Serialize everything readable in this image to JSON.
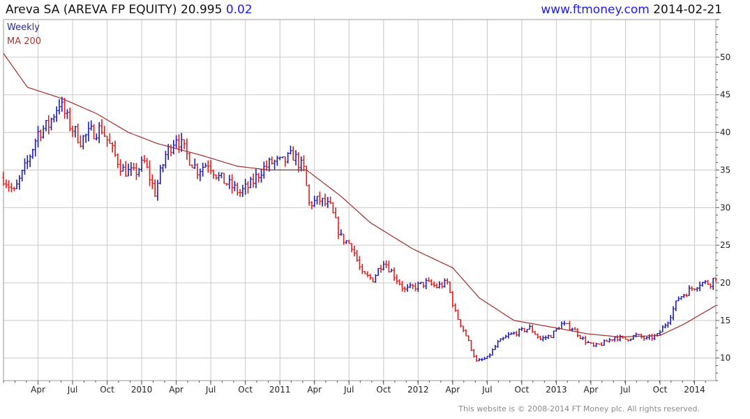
{
  "header": {
    "title": "Areva SA (AREVA FP EQUITY)",
    "price": "20.995",
    "change": "0.02",
    "site": "www.ftmoney.com",
    "date": "2014-02-21"
  },
  "footer": "This website is © 2008-2014 FT Money plc. All rights reserved.",
  "colors": {
    "up": "#1a1ab8",
    "down": "#e31a1a",
    "ma": "#a52a2a",
    "grid": "#c9c9c9"
  },
  "chart_data": {
    "type": "line",
    "title": "Areva SA (AREVA FP EQUITY)",
    "legend": [
      "Weekly",
      "MA 200"
    ],
    "legend_position": "top-left",
    "grid": true,
    "y_axis_position": "right",
    "ylim": [
      7,
      55
    ],
    "yticks": [
      10,
      15,
      20,
      25,
      30,
      35,
      40,
      45,
      50
    ],
    "x_tick_labels": [
      "Apr",
      "Jul",
      "Oct",
      "2010",
      "Apr",
      "Jul",
      "Oct",
      "2011",
      "Apr",
      "Jul",
      "Oct",
      "2012",
      "Apr",
      "Jul",
      "Oct",
      "2013",
      "Apr",
      "Jul",
      "Oct",
      "2014"
    ],
    "x_tick_weeks": [
      13,
      26,
      39,
      52,
      65,
      78,
      91,
      104,
      117,
      130,
      143,
      156,
      169,
      182,
      195,
      208,
      221,
      234,
      247,
      260
    ],
    "x_range_weeks": [
      0,
      268
    ],
    "weekly_close_anchors": [
      [
        "2009-01-01",
        34.0
      ],
      [
        "2009-01-29",
        32.0
      ],
      [
        "2009-03-05",
        36.0
      ],
      [
        "2009-04-02",
        40.0
      ],
      [
        "2009-04-30",
        41.0
      ],
      [
        "2009-05-28",
        44.0
      ],
      [
        "2009-06-25",
        41.0
      ],
      [
        "2009-07-23",
        39.0
      ],
      [
        "2009-08-20",
        40.0
      ],
      [
        "2009-09-17",
        40.5
      ],
      [
        "2009-10-15",
        37.5
      ],
      [
        "2009-11-12",
        35.0
      ],
      [
        "2009-12-10",
        34.5
      ],
      [
        "2010-01-07",
        36.0
      ],
      [
        "2010-02-04",
        32.0
      ],
      [
        "2010-03-04",
        37.0
      ],
      [
        "2010-04-01",
        39.5
      ],
      [
        "2010-04-29",
        37.0
      ],
      [
        "2010-05-27",
        35.0
      ],
      [
        "2010-06-24",
        36.0
      ],
      [
        "2010-07-22",
        34.0
      ],
      [
        "2010-08-19",
        33.0
      ],
      [
        "2010-09-16",
        32.0
      ],
      [
        "2010-10-14",
        33.0
      ],
      [
        "2010-11-11",
        35.0
      ],
      [
        "2010-12-09",
        36.0
      ],
      [
        "2011-01-06",
        36.0
      ],
      [
        "2011-02-03",
        37.0
      ],
      [
        "2011-03-03",
        35.0
      ],
      [
        "2011-03-17",
        30.5
      ],
      [
        "2011-04-14",
        31.0
      ],
      [
        "2011-05-12",
        30.0
      ],
      [
        "2011-06-09",
        26.0
      ],
      [
        "2011-07-07",
        25.0
      ],
      [
        "2011-08-04",
        21.0
      ],
      [
        "2011-09-01",
        20.5
      ],
      [
        "2011-09-29",
        23.0
      ],
      [
        "2011-10-27",
        21.0
      ],
      [
        "2011-11-24",
        19.0
      ],
      [
        "2011-12-22",
        19.5
      ],
      [
        "2012-01-19",
        20.0
      ],
      [
        "2012-02-16",
        19.5
      ],
      [
        "2012-03-15",
        20.0
      ],
      [
        "2012-04-05",
        16.0
      ],
      [
        "2012-05-03",
        13.0
      ],
      [
        "2012-05-31",
        9.5
      ],
      [
        "2012-06-28",
        10.0
      ],
      [
        "2012-07-26",
        12.0
      ],
      [
        "2012-08-23",
        13.0
      ],
      [
        "2012-09-20",
        13.5
      ],
      [
        "2012-10-18",
        14.0
      ],
      [
        "2012-11-15",
        12.5
      ],
      [
        "2012-12-13",
        13.0
      ],
      [
        "2013-01-10",
        14.5
      ],
      [
        "2013-02-07",
        14.0
      ],
      [
        "2013-03-07",
        12.5
      ],
      [
        "2013-04-04",
        11.5
      ],
      [
        "2013-05-02",
        12.0
      ],
      [
        "2013-05-30",
        12.8
      ],
      [
        "2013-06-27",
        12.5
      ],
      [
        "2013-07-25",
        13.0
      ],
      [
        "2013-08-22",
        12.5
      ],
      [
        "2013-09-19",
        13.0
      ],
      [
        "2013-10-17",
        15.0
      ],
      [
        "2013-11-14",
        18.0
      ],
      [
        "2013-12-12",
        19.0
      ],
      [
        "2014-01-09",
        20.0
      ],
      [
        "2014-02-06",
        20.0
      ],
      [
        "2014-02-21",
        21.0
      ]
    ],
    "ma200_anchors": [
      [
        "2009-01-01",
        50.5
      ],
      [
        "2009-03-05",
        46.0
      ],
      [
        "2009-06-04",
        44.5
      ],
      [
        "2009-09-03",
        42.5
      ],
      [
        "2009-11-26",
        40.0
      ],
      [
        "2010-02-11",
        38.5
      ],
      [
        "2010-06-03",
        37.0
      ],
      [
        "2010-09-09",
        35.5
      ],
      [
        "2010-12-02",
        35.0
      ],
      [
        "2011-03-10",
        35.0
      ],
      [
        "2011-06-09",
        31.5
      ],
      [
        "2011-08-25",
        28.0
      ],
      [
        "2011-12-15",
        24.5
      ],
      [
        "2012-03-29",
        22.0
      ],
      [
        "2012-06-07",
        18.0
      ],
      [
        "2012-09-06",
        15.0
      ],
      [
        "2012-12-27",
        14.0
      ],
      [
        "2013-03-21",
        13.2
      ],
      [
        "2013-06-13",
        12.8
      ],
      [
        "2013-09-26",
        13.0
      ],
      [
        "2013-11-28",
        14.5
      ],
      [
        "2014-02-21",
        17.0
      ]
    ]
  }
}
